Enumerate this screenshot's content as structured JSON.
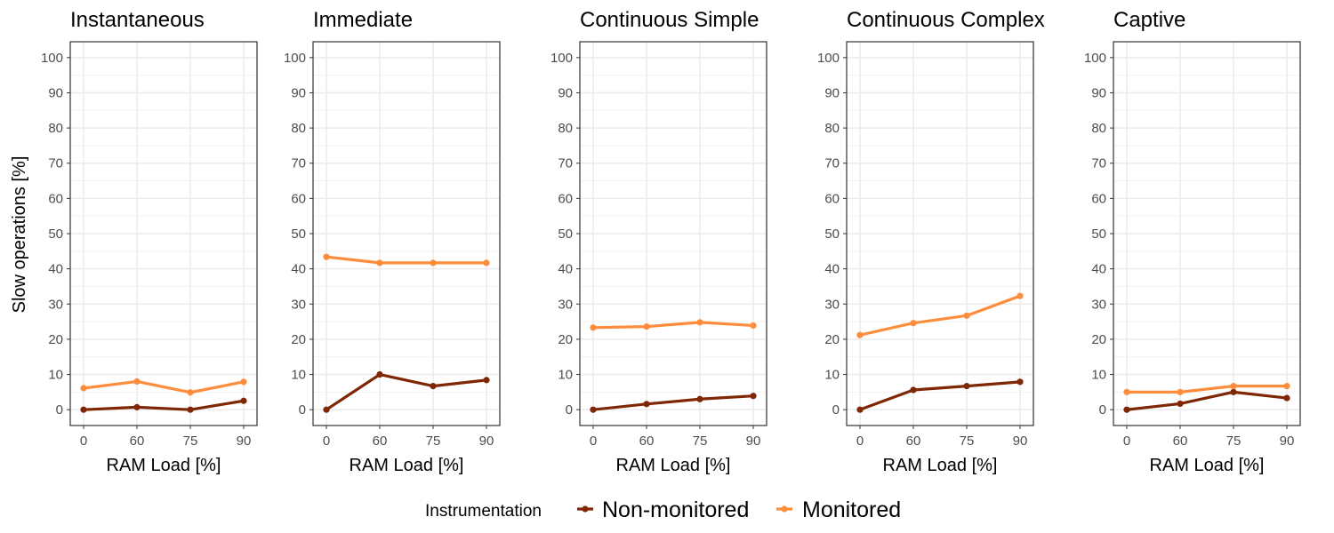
{
  "chart_data": {
    "type": "line",
    "ylabel": "Slow operations [%]",
    "xlabel": "RAM Load [%]",
    "categories": [
      "0",
      "60",
      "75",
      "90"
    ],
    "yticks": [
      0,
      10,
      20,
      30,
      40,
      50,
      60,
      70,
      80,
      90,
      100
    ],
    "ylim": [
      -4.5,
      104.5
    ],
    "grid": true,
    "legend": {
      "title": "Instrumentation",
      "position": "bottom",
      "entries": [
        {
          "name": "Non-monitored",
          "color": "#7f2704"
        },
        {
          "name": "Monitored",
          "color": "#fd8d3c"
        }
      ]
    },
    "panels": [
      {
        "title": "Instantaneous",
        "series": [
          {
            "name": "Non-monitored",
            "values": [
              0,
              0.7,
              0,
              2.5
            ]
          },
          {
            "name": "Monitored",
            "values": [
              6.1,
              8.0,
              4.9,
              7.9
            ]
          }
        ]
      },
      {
        "title": "Immediate",
        "series": [
          {
            "name": "Non-monitored",
            "values": [
              0,
              10.0,
              6.7,
              8.4
            ]
          },
          {
            "name": "Monitored",
            "values": [
              43.4,
              41.7,
              41.7,
              41.7
            ]
          }
        ]
      },
      {
        "title": "Continuous Simple",
        "series": [
          {
            "name": "Non-monitored",
            "values": [
              0,
              1.6,
              3.0,
              3.9
            ]
          },
          {
            "name": "Monitored",
            "values": [
              23.3,
              23.6,
              24.8,
              23.9
            ]
          }
        ]
      },
      {
        "title": "Continuous Complex",
        "series": [
          {
            "name": "Non-monitored",
            "values": [
              0,
              5.6,
              6.7,
              7.9
            ]
          },
          {
            "name": "Monitored",
            "values": [
              21.2,
              24.6,
              26.7,
              32.3
            ]
          }
        ]
      },
      {
        "title": "Captive",
        "series": [
          {
            "name": "Non-monitored",
            "values": [
              0,
              1.7,
              5.0,
              3.3
            ]
          },
          {
            "name": "Monitored",
            "values": [
              5.0,
              5.0,
              6.7,
              6.7
            ]
          }
        ]
      }
    ]
  }
}
